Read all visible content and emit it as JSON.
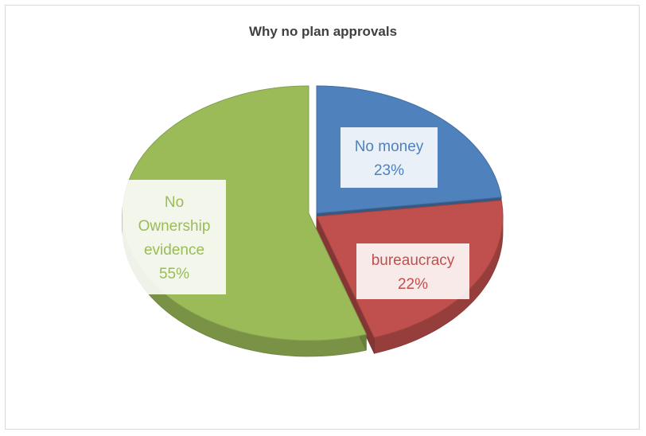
{
  "chart_data": {
    "type": "pie",
    "title": "Why no plan approvals",
    "slices": [
      {
        "label": "No money",
        "value": 23,
        "display": "23%",
        "color": "#4f81bd"
      },
      {
        "label": "bureaucracy",
        "value": 22,
        "display": "22%",
        "color": "#c0504d"
      },
      {
        "label": "No Ownership evidence",
        "value": 55,
        "display": "55%",
        "color": "#9bbb59"
      }
    ],
    "legend": "none",
    "style": "3d-exploded"
  }
}
